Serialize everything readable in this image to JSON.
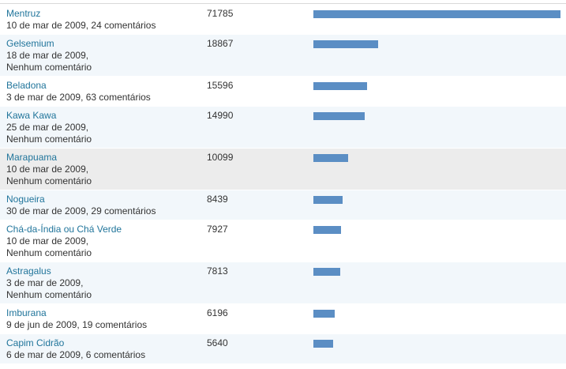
{
  "max_views": 71785,
  "bar_color": "#5b8ec4",
  "link_color": "#21759b",
  "rows": [
    {
      "title": "Mentruz",
      "meta_line1": "10 de mar de 2009, 24 comentários",
      "meta_line2": "",
      "views": 71785,
      "views_label": "71785"
    },
    {
      "title": "Gelsemium",
      "meta_line1": "18 de mar de 2009,",
      "meta_line2": "Nenhum comentário",
      "views": 18867,
      "views_label": "18867"
    },
    {
      "title": "Beladona",
      "meta_line1": "3 de mar de 2009, 63 comentários",
      "meta_line2": "",
      "views": 15596,
      "views_label": "15596"
    },
    {
      "title": "Kawa Kawa",
      "meta_line1": "25 de mar de 2009,",
      "meta_line2": "Nenhum comentário",
      "views": 14990,
      "views_label": "14990"
    },
    {
      "title": "Marapuama",
      "meta_line1": "10 de mar de 2009,",
      "meta_line2": "Nenhum comentário",
      "views": 10099,
      "views_label": "10099"
    },
    {
      "title": "Nogueira",
      "meta_line1": "30 de mar de 2009, 29 comentários",
      "meta_line2": "",
      "views": 8439,
      "views_label": "8439"
    },
    {
      "title": "Chá-da-Índia ou Chá Verde",
      "meta_line1": "10 de mar de 2009,",
      "meta_line2": "Nenhum comentário",
      "views": 7927,
      "views_label": "7927"
    },
    {
      "title": "Astragalus",
      "meta_line1": "3 de mar de 2009,",
      "meta_line2": "Nenhum comentário",
      "views": 7813,
      "views_label": "7813"
    },
    {
      "title": "Imburana",
      "meta_line1": "9 de jun de 2009, 19 comentários",
      "meta_line2": "",
      "views": 6196,
      "views_label": "6196"
    },
    {
      "title": "Capim Cidrão",
      "meta_line1": "6 de mar de 2009, 6 comentários",
      "meta_line2": "",
      "views": 5640,
      "views_label": "5640"
    }
  ]
}
